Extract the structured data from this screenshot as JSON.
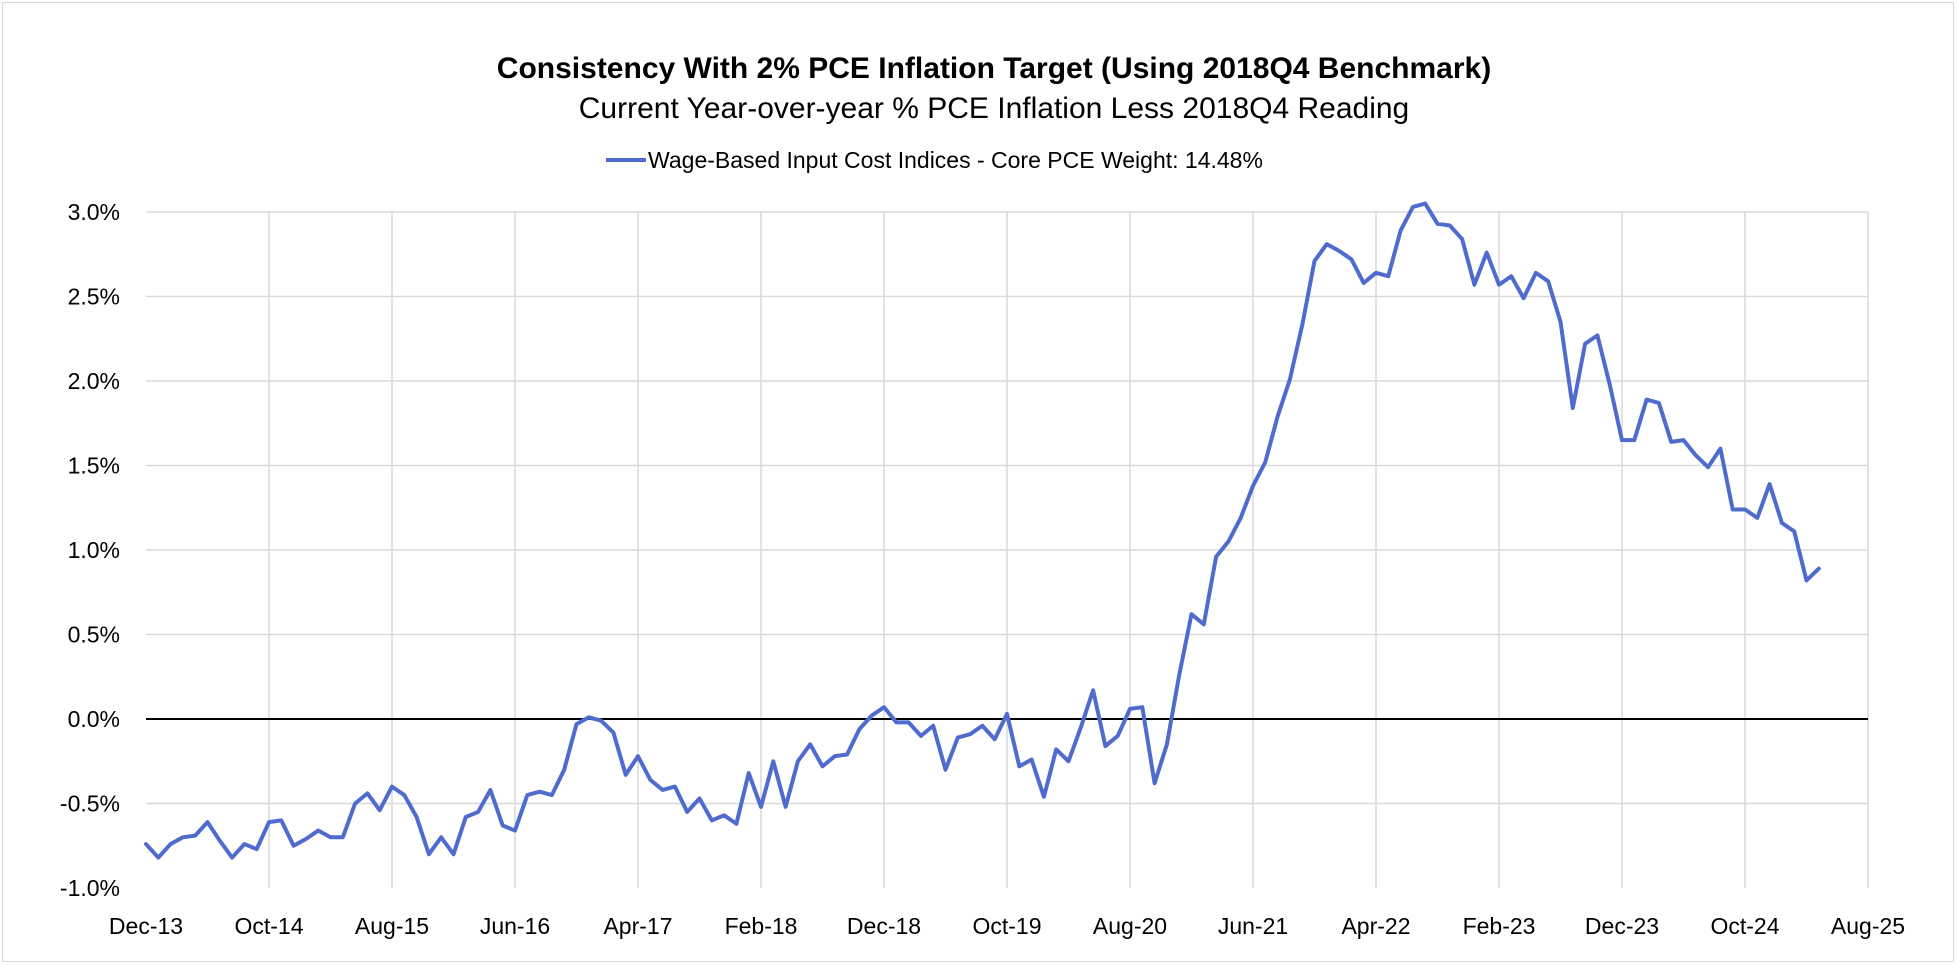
{
  "chart_data": {
    "type": "line",
    "title": "Consistency With 2% PCE Inflation Target (Using 2018Q4 Benchmark)",
    "subtitle": "Current Year-over-year % PCE Inflation Less 2018Q4 Reading",
    "ylim": [
      -1.0,
      3.0
    ],
    "y_ticks": [
      -1.0,
      -0.5,
      0.0,
      0.5,
      1.0,
      1.5,
      2.0,
      2.5,
      3.0
    ],
    "y_tick_labels": [
      "-1.0%",
      "-0.5%",
      "0.0%",
      "0.5%",
      "1.0%",
      "1.5%",
      "2.0%",
      "2.5%",
      "3.0%"
    ],
    "x_start": "Dec-13",
    "x_ticks": [
      0,
      10,
      20,
      30,
      40,
      50,
      60,
      70,
      80,
      90,
      100,
      110,
      120,
      130,
      140
    ],
    "x_tick_labels": [
      "Dec-13",
      "Oct-14",
      "Aug-15",
      "Jun-16",
      "Apr-17",
      "Feb-18",
      "Dec-18",
      "Oct-19",
      "Aug-20",
      "Jun-21",
      "Apr-22",
      "Feb-23",
      "Dec-23",
      "Oct-24",
      "Aug-25"
    ],
    "x_range": [
      0,
      140
    ],
    "grid": true,
    "legend_position": "top",
    "series": [
      {
        "name": "Wage-Based Input Cost Indices - Core PCE Weight: 14.48%",
        "color": "#4f6bce",
        "values": [
          -0.74,
          -0.82,
          -0.74,
          -0.7,
          -0.69,
          -0.61,
          -0.72,
          -0.82,
          -0.74,
          -0.77,
          -0.61,
          -0.6,
          -0.75,
          -0.71,
          -0.66,
          -0.7,
          -0.7,
          -0.5,
          -0.44,
          -0.54,
          -0.4,
          -0.45,
          -0.58,
          -0.8,
          -0.7,
          -0.8,
          -0.58,
          -0.55,
          -0.42,
          -0.63,
          -0.66,
          -0.45,
          -0.43,
          -0.45,
          -0.3,
          -0.03,
          0.01,
          -0.01,
          -0.08,
          -0.33,
          -0.22,
          -0.36,
          -0.42,
          -0.4,
          -0.55,
          -0.47,
          -0.6,
          -0.57,
          -0.62,
          -0.32,
          -0.52,
          -0.25,
          -0.52,
          -0.25,
          -0.15,
          -0.28,
          -0.22,
          -0.21,
          -0.06,
          0.02,
          0.07,
          -0.02,
          -0.02,
          -0.1,
          -0.04,
          -0.3,
          -0.11,
          -0.09,
          -0.04,
          -0.12,
          0.03,
          -0.28,
          -0.24,
          -0.46,
          -0.18,
          -0.25,
          -0.05,
          0.17,
          -0.16,
          -0.1,
          0.06,
          0.07,
          -0.38,
          -0.15,
          0.26,
          0.62,
          0.56,
          0.96,
          1.05,
          1.19,
          1.38,
          1.52,
          1.79,
          2.01,
          2.33,
          2.71,
          2.81,
          2.77,
          2.72,
          2.58,
          2.64,
          2.62,
          2.89,
          3.03,
          3.05,
          2.93,
          2.92,
          2.84,
          2.57,
          2.76,
          2.57,
          2.62,
          2.49,
          2.64,
          2.59,
          2.35,
          1.84,
          2.22,
          2.27,
          1.98,
          1.65,
          1.65,
          1.89,
          1.87,
          1.64,
          1.65,
          1.56,
          1.49,
          1.6,
          1.24,
          1.24,
          1.19,
          1.39,
          1.16,
          1.11,
          0.82,
          0.89
        ]
      }
    ]
  }
}
